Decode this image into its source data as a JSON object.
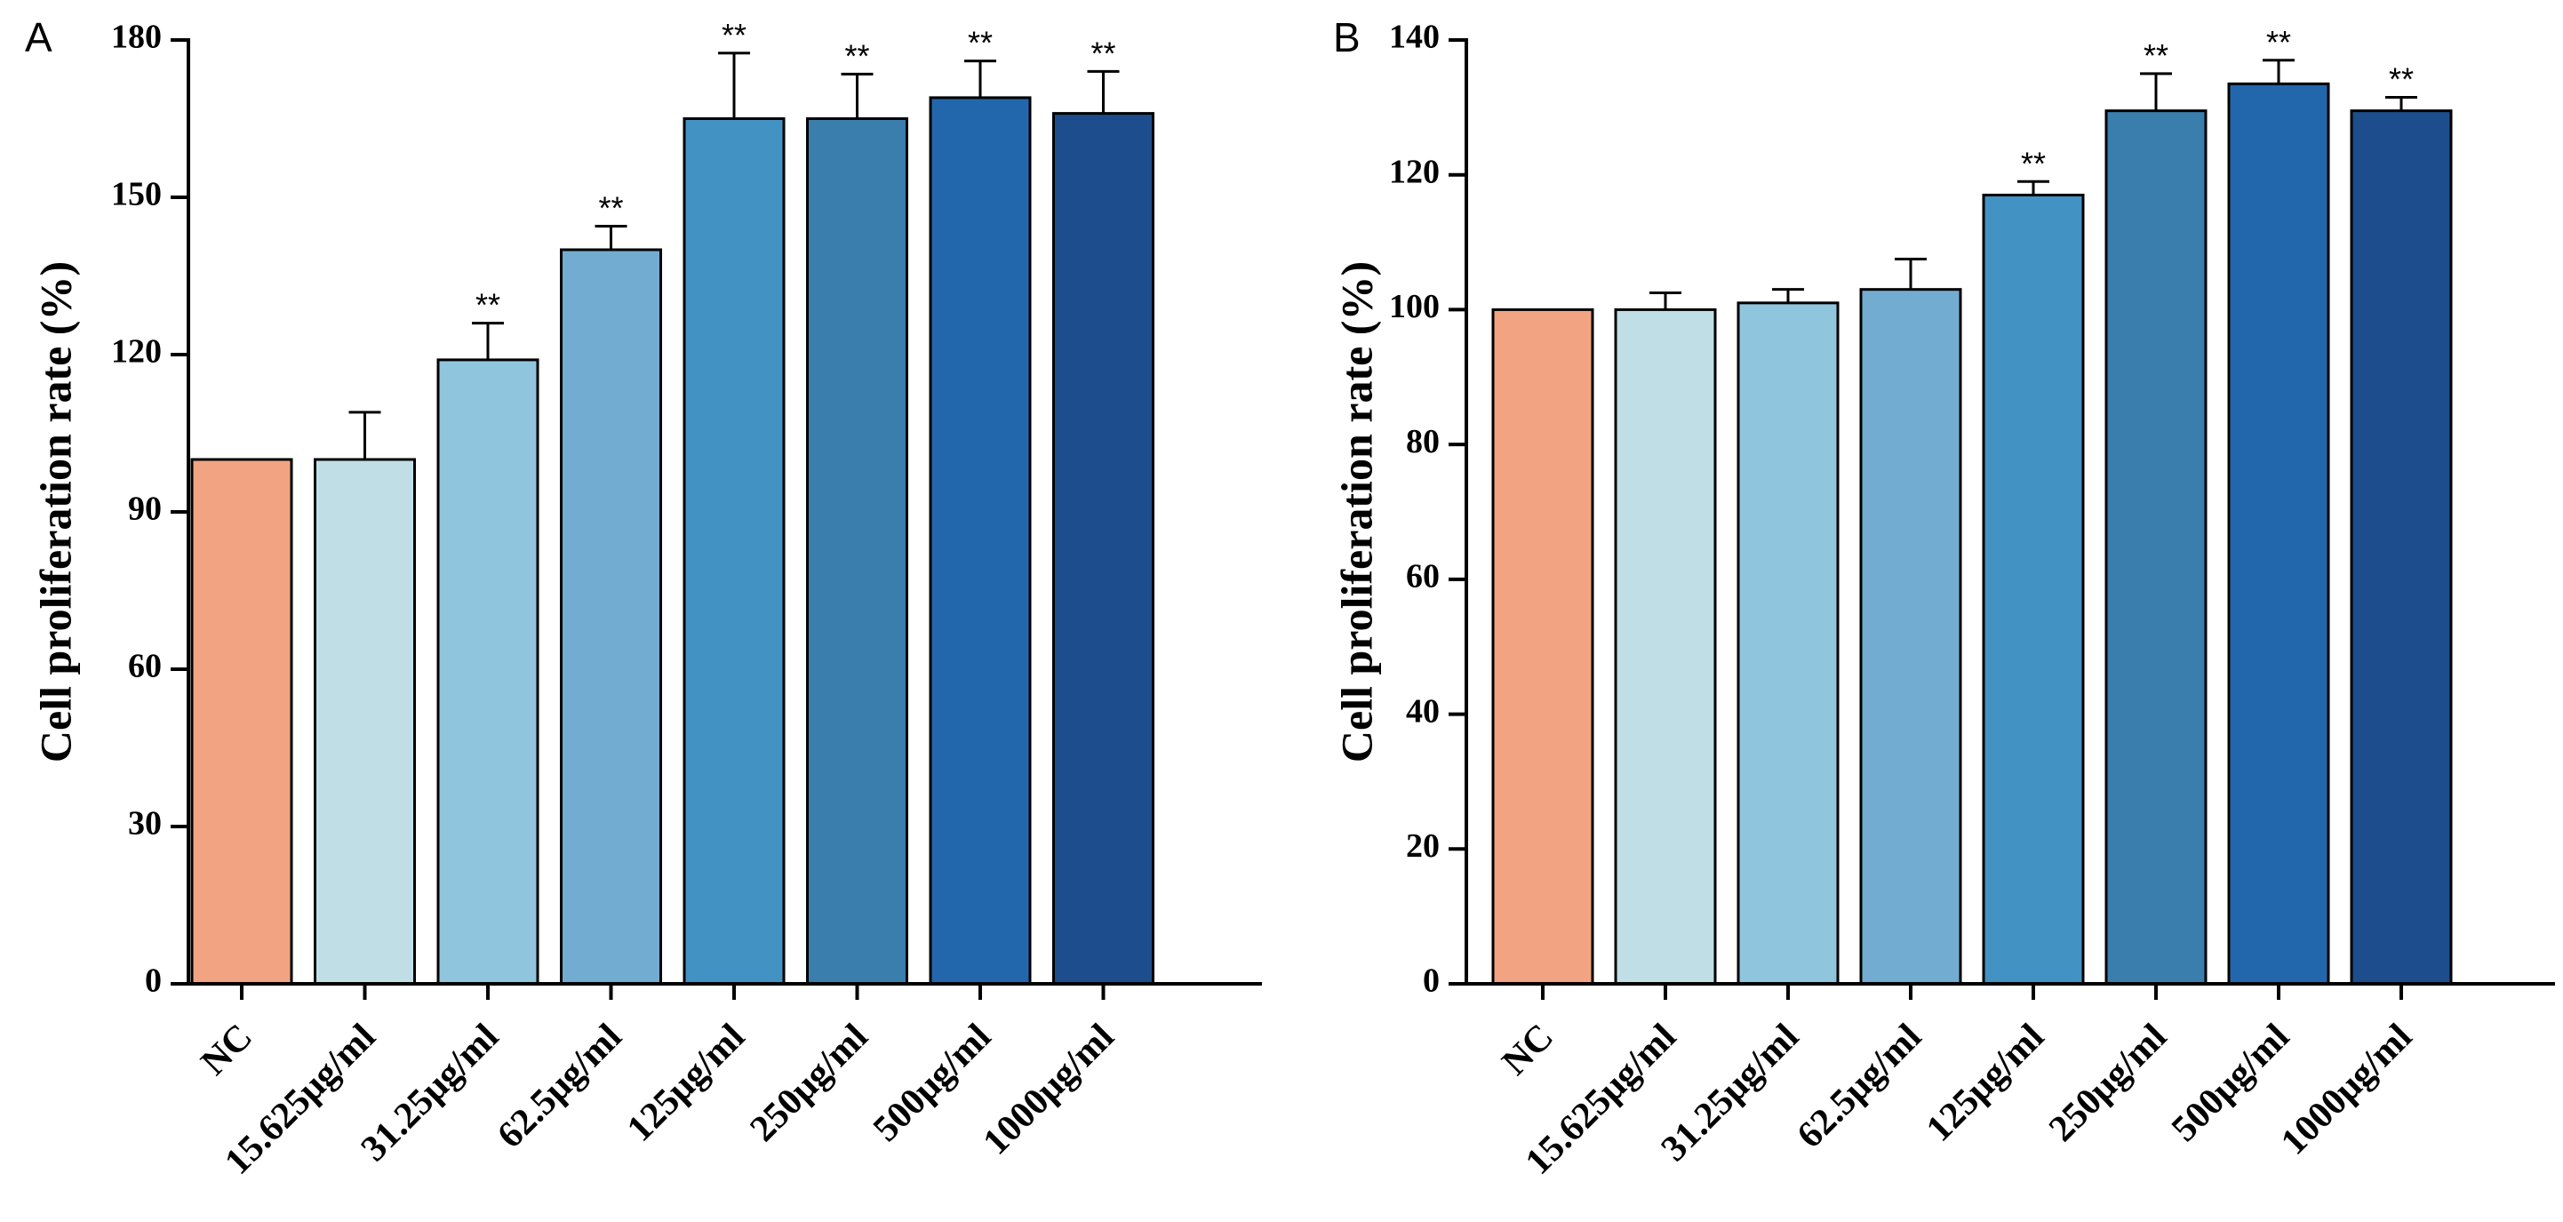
{
  "chart_data": [
    {
      "type": "bar",
      "panel": "A",
      "ylabel": "Cell proliferation rate (%)",
      "xlabel": "",
      "ylim": [
        0,
        180
      ],
      "yticks": [
        0,
        30,
        60,
        90,
        120,
        150,
        180
      ],
      "categories": [
        "NC",
        "15.625μg/ml",
        "31.25μg/ml",
        "62.5μg/ml",
        "125μg/ml",
        "250μg/ml",
        "500μg/ml",
        "1000μg/ml"
      ],
      "values": [
        100,
        100,
        119,
        140,
        165,
        165,
        169,
        166
      ],
      "errors": [
        0,
        9,
        7,
        4.5,
        12.5,
        8.5,
        7,
        8
      ],
      "significance": [
        "",
        "",
        "**",
        "**",
        "**",
        "**",
        "**",
        "**"
      ],
      "colors": [
        "#F2A482",
        "#C0DEE6",
        "#90C5DE",
        "#73ACD1",
        "#4392C4",
        "#3A7EAD",
        "#2267AC",
        "#1D4D8C"
      ]
    },
    {
      "type": "bar",
      "panel": "B",
      "ylabel": "Cell proliferation rate (%)",
      "xlabel": "",
      "ylim": [
        0,
        140
      ],
      "yticks": [
        0,
        20,
        40,
        60,
        80,
        100,
        120,
        140
      ],
      "categories": [
        "NC",
        "15.625μg/ml",
        "31.25μg/ml",
        "62.5μg/ml",
        "125μg/ml",
        "250μg/ml",
        "500μg/ml",
        "1000μg/ml"
      ],
      "values": [
        100,
        100,
        101,
        103,
        117,
        129.5,
        133.5,
        129.5
      ],
      "errors": [
        0,
        2.5,
        2,
        4.5,
        2,
        5.5,
        3.5,
        2
      ],
      "significance": [
        "",
        "",
        "",
        "",
        "**",
        "**",
        "**",
        "**"
      ],
      "colors": [
        "#F2A482",
        "#C0DEE6",
        "#90C5DE",
        "#73ACD1",
        "#4392C4",
        "#3A7EAD",
        "#2267AC",
        "#1D4D8C"
      ]
    }
  ]
}
